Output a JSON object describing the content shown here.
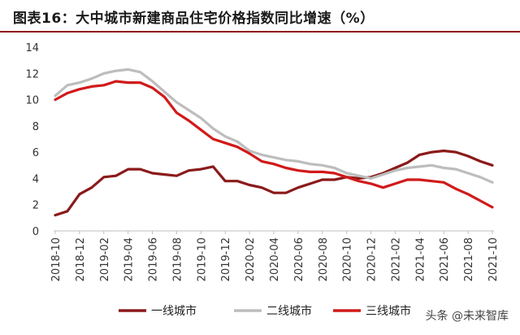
{
  "title": "图表16：大中城市新建商品住宅价格指数同比增速（%）",
  "watermark": "头条 @未来智库",
  "chart_data": {
    "type": "line",
    "ylim": [
      0,
      14
    ],
    "yticks": [
      0,
      2,
      4,
      6,
      8,
      10,
      12,
      14
    ],
    "grid": false,
    "legend_position": "bottom",
    "x": [
      "2018-10",
      "2018-11",
      "2018-12",
      "2019-01",
      "2019-02",
      "2019-03",
      "2019-04",
      "2019-05",
      "2019-06",
      "2019-07",
      "2019-08",
      "2019-09",
      "2019-10",
      "2019-11",
      "2019-12",
      "2020-01",
      "2020-02",
      "2020-03",
      "2020-04",
      "2020-05",
      "2020-06",
      "2020-07",
      "2020-08",
      "2020-09",
      "2020-10",
      "2020-11",
      "2020-12",
      "2021-01",
      "2021-02",
      "2021-03",
      "2021-04",
      "2021-05",
      "2021-06",
      "2021-07",
      "2021-08",
      "2021-09",
      "2021-10"
    ],
    "xtick_labels": [
      "2018-10",
      "2018-12",
      "2019-02",
      "2019-04",
      "2019-06",
      "2019-08",
      "2019-10",
      "2019-12",
      "2020-02",
      "2020-04",
      "2020-06",
      "2020-08",
      "2020-10",
      "2020-12",
      "2021-02",
      "2021-04",
      "2021-06",
      "2021-08",
      "2021-10"
    ],
    "series": [
      {
        "name": "一线城市",
        "color": "#8b1a1a",
        "values": [
          1.2,
          1.5,
          2.8,
          3.3,
          4.1,
          4.2,
          4.7,
          4.7,
          4.4,
          4.3,
          4.2,
          4.6,
          4.7,
          4.9,
          3.8,
          3.8,
          3.5,
          3.3,
          2.9,
          2.9,
          3.3,
          3.6,
          3.9,
          3.9,
          4.1,
          4.0,
          4.1,
          4.4,
          4.8,
          5.2,
          5.8,
          6.0,
          6.1,
          6.0,
          5.7,
          5.3,
          5.0
        ]
      },
      {
        "name": "二线城市",
        "color": "#bdbdbd",
        "values": [
          10.3,
          11.1,
          11.3,
          11.6,
          12.0,
          12.2,
          12.3,
          12.1,
          11.4,
          10.6,
          9.8,
          9.2,
          8.6,
          7.8,
          7.2,
          6.8,
          6.1,
          5.8,
          5.6,
          5.4,
          5.3,
          5.1,
          5.0,
          4.8,
          4.4,
          4.2,
          4.0,
          4.3,
          4.6,
          4.8,
          4.9,
          5.0,
          4.8,
          4.7,
          4.4,
          4.1,
          3.7
        ]
      },
      {
        "name": "三线城市",
        "color": "#d11a1a",
        "values": [
          10.0,
          10.5,
          10.8,
          11.0,
          11.1,
          11.4,
          11.3,
          11.3,
          10.9,
          10.2,
          9.0,
          8.4,
          7.7,
          7.0,
          6.7,
          6.4,
          5.9,
          5.3,
          5.1,
          4.8,
          4.6,
          4.5,
          4.5,
          4.4,
          4.1,
          3.8,
          3.6,
          3.3,
          3.6,
          3.9,
          3.9,
          3.8,
          3.7,
          3.2,
          2.8,
          2.3,
          1.8
        ]
      }
    ]
  }
}
